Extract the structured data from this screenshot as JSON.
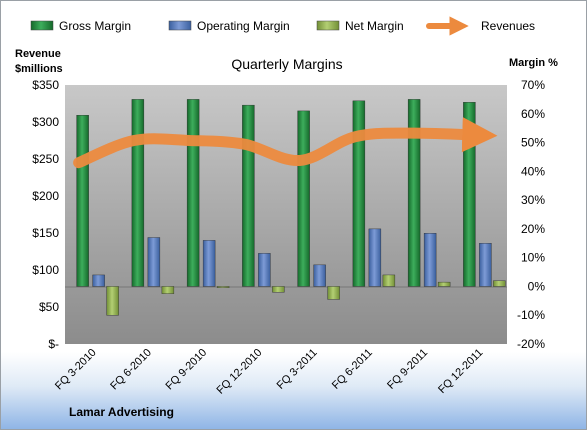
{
  "legend": [
    {
      "label": "Gross Margin",
      "color": "#1f7a35"
    },
    {
      "label": "Operating Margin",
      "color": "#4f72b6"
    },
    {
      "label": "Net Margin",
      "color": "#8bac4a"
    },
    {
      "label": "Revenues",
      "color": "#ec8a3e"
    }
  ],
  "left_axis_title": [
    "Revenue",
    "$millions"
  ],
  "right_axis_title": "Margin %",
  "footer": "Lamar Advertising",
  "chart_data": {
    "type": "bar",
    "title": "Quarterly Margins",
    "categories": [
      "FQ 3-2010",
      "FQ 6-2010",
      "FQ 9-2010",
      "FQ 12-2010",
      "FQ 3-2011",
      "FQ 6-2011",
      "FQ 9-2011",
      "FQ 12-2011"
    ],
    "series": [
      {
        "name": "Gross Margin",
        "axis": "right",
        "values": [
          59.5,
          65,
          65,
          63,
          61,
          64.5,
          65,
          64
        ]
      },
      {
        "name": "Operating Margin",
        "axis": "right",
        "values": [
          4,
          17,
          16,
          11.5,
          7.5,
          20,
          18.5,
          15
        ]
      },
      {
        "name": "Net Margin",
        "axis": "right",
        "values": [
          -10,
          -2.5,
          0,
          -2,
          -4.5,
          4,
          1.5,
          2
        ]
      },
      {
        "name": "Revenues",
        "axis": "left",
        "type": "line",
        "values": [
          245,
          275,
          275,
          270,
          248,
          280,
          285,
          282
        ]
      }
    ],
    "y_left": {
      "ticks": [
        "$-",
        "$50",
        "$100",
        "$150",
        "$200",
        "$250",
        "$300",
        "$350"
      ],
      "range": [
        0,
        350
      ]
    },
    "y_right": {
      "ticks": [
        "-20%",
        "-10%",
        "0%",
        "10%",
        "20%",
        "30%",
        "40%",
        "50%",
        "60%",
        "70%"
      ],
      "range": [
        -20,
        70
      ]
    },
    "grid": false,
    "legend_position": "top"
  }
}
